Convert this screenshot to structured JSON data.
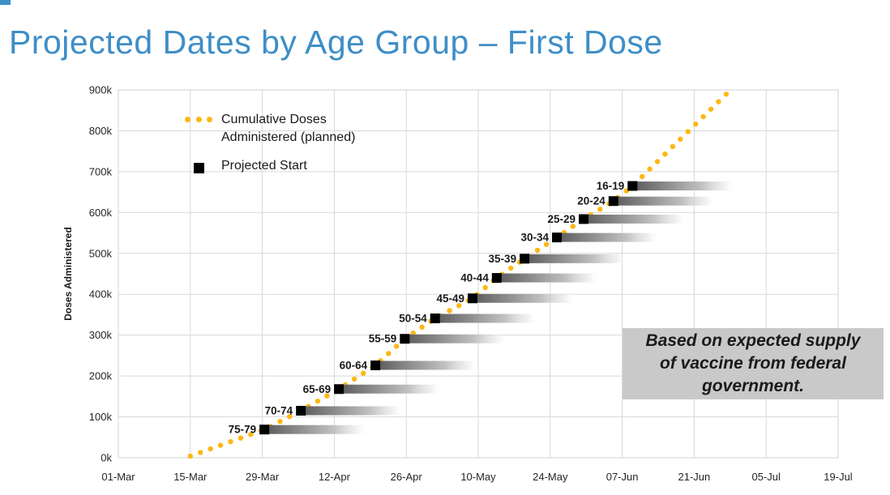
{
  "page": {
    "title": "Projected Dates by Age Group – First Dose"
  },
  "colors": {
    "title_blue": "#3E8EC7",
    "dot_orange": "#FDB714",
    "square_black": "#000000",
    "grid_gray": "#D9D9D9",
    "axis_text": "#262626",
    "infobox_bg": "#C9C9C9",
    "bar_dark": "#5A5A5A"
  },
  "legend": {
    "cumulative_line1": "Cumulative Doses",
    "cumulative_line2": "Administered (planned)",
    "projected_start": "Projected Start"
  },
  "infobox": {
    "line1": "Based on expected supply",
    "line2": "of vaccine from federal",
    "line3": "government."
  },
  "chart_data": {
    "type": "scatter",
    "title": "Projected Dates by Age Group – First Dose",
    "xlabel": "",
    "ylabel": "Doses Administered",
    "grid": true,
    "legend_position": "upper-left-inside",
    "x_tick_labels": [
      "01-Mar",
      "15-Mar",
      "29-Mar",
      "12-Apr",
      "26-Apr",
      "10-May",
      "24-May",
      "07-Jun",
      "21-Jun",
      "05-Jul",
      "19-Jul"
    ],
    "x_tick_days": [
      0,
      14,
      28,
      42,
      56,
      70,
      84,
      98,
      112,
      126,
      140
    ],
    "y_tick_labels": [
      "0k",
      "100k",
      "200k",
      "300k",
      "400k",
      "500k",
      "600k",
      "700k",
      "800k",
      "900k"
    ],
    "y_tick_values_k": [
      0,
      100,
      200,
      300,
      400,
      500,
      600,
      700,
      800,
      900
    ],
    "ylim_k": [
      0,
      900
    ],
    "xrange_days": [
      0,
      140
    ],
    "cumulative_line": {
      "name": "Cumulative Doses Administered (planned)",
      "style": "dotted",
      "points_day_k": [
        [
          14,
          4
        ],
        [
          28.4,
          69
        ],
        [
          35.5,
          115
        ],
        [
          42.9,
          168
        ],
        [
          50,
          226
        ],
        [
          55.7,
          291
        ],
        [
          61.6,
          341
        ],
        [
          68.9,
          390
        ],
        [
          73.6,
          440
        ],
        [
          79,
          487
        ],
        [
          85.3,
          539
        ],
        [
          90.5,
          584
        ],
        [
          96.3,
          628
        ],
        [
          100,
          665
        ],
        [
          119,
          899
        ]
      ]
    },
    "projected_starts": {
      "name": "Projected Start",
      "bar_days": 20,
      "groups": [
        {
          "label": "75-79",
          "start_date": "29-Mar",
          "day": 28.4,
          "cumulative_k": 69
        },
        {
          "label": "70-74",
          "start_date": "05-Apr",
          "day": 35.5,
          "cumulative_k": 115
        },
        {
          "label": "65-69",
          "start_date": "12-Apr",
          "day": 42.9,
          "cumulative_k": 168
        },
        {
          "label": "60-64",
          "start_date": "20-Apr",
          "day": 50.0,
          "cumulative_k": 226
        },
        {
          "label": "55-59",
          "start_date": "26-Apr",
          "day": 55.7,
          "cumulative_k": 291
        },
        {
          "label": "50-54",
          "start_date": "01-May",
          "day": 61.6,
          "cumulative_k": 341
        },
        {
          "label": "45-49",
          "start_date": "08-May",
          "day": 68.9,
          "cumulative_k": 390
        },
        {
          "label": "40-44",
          "start_date": "13-May",
          "day": 73.6,
          "cumulative_k": 440
        },
        {
          "label": "35-39",
          "start_date": "19-May",
          "day": 79.0,
          "cumulative_k": 487
        },
        {
          "label": "30-34",
          "start_date": "25-May",
          "day": 85.3,
          "cumulative_k": 539
        },
        {
          "label": "25-29",
          "start_date": "30-May",
          "day": 90.5,
          "cumulative_k": 584
        },
        {
          "label": "20-24",
          "start_date": "05-Jun",
          "day": 96.3,
          "cumulative_k": 628
        },
        {
          "label": "16-19",
          "start_date": "09-Jun",
          "day": 100.0,
          "cumulative_k": 665
        }
      ]
    }
  }
}
